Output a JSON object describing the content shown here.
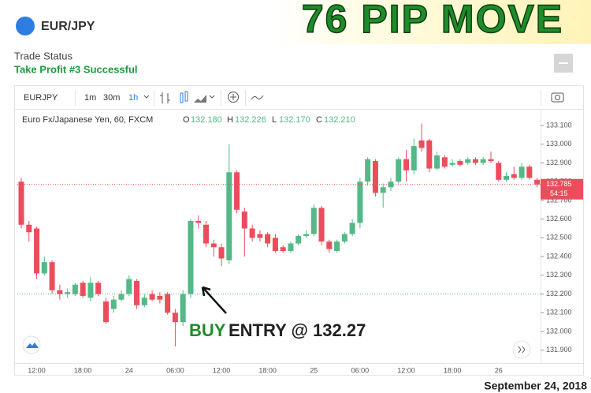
{
  "header": {
    "symbol": "EUR/JPY",
    "headline": "76 PIP MOVE"
  },
  "trade_status": {
    "label": "Trade Status",
    "status": "Take Profit #3 Successful"
  },
  "toolbar": {
    "symbol": "EURJPY",
    "intervals": [
      "1m",
      "30m",
      "1h"
    ]
  },
  "legend": {
    "name": "Euro Fx/Japanese Yen, 60, FXCM",
    "fields": [
      {
        "key": "O",
        "value": "132.180"
      },
      {
        "key": "H",
        "value": "132.226"
      },
      {
        "key": "L",
        "value": "132.170"
      },
      {
        "key": "C",
        "value": "132.210"
      }
    ]
  },
  "chart_data": {
    "type": "candlestick",
    "categories": [
      null,
      null,
      "12:00",
      null,
      null,
      null,
      null,
      null,
      "18:00",
      null,
      null,
      null,
      null,
      null,
      "24",
      null,
      null,
      null,
      null,
      null,
      "06:00",
      null,
      null,
      null,
      null,
      null,
      "12:00",
      null,
      null,
      null,
      null,
      null,
      "18:00",
      null,
      null,
      null,
      null,
      null,
      "25",
      null,
      null,
      null,
      null,
      null,
      "06:00",
      null,
      null,
      null,
      null,
      null,
      "12:00",
      null,
      null,
      null,
      null,
      null,
      "18:00",
      null,
      null,
      null,
      null,
      null,
      "26",
      null,
      null,
      null,
      null,
      null
    ],
    "open": [
      132.8,
      132.57,
      132.55,
      132.31,
      132.37,
      132.22,
      132.2,
      132.2,
      132.26,
      132.18,
      132.26,
      132.16,
      132.12,
      132.17,
      132.2,
      132.27,
      132.14,
      132.2,
      132.19,
      132.2,
      132.1,
      132.05,
      132.2,
      132.59,
      132.57,
      132.47,
      132.45,
      132.38,
      132.85,
      132.64,
      132.55,
      132.52,
      132.52,
      132.5,
      132.45,
      132.43,
      132.47,
      132.51,
      132.52,
      132.66,
      132.48,
      132.43,
      132.48,
      132.52,
      132.58,
      132.8,
      132.91,
      132.74,
      132.77,
      132.8,
      132.92,
      132.86,
      133.02,
      133.02,
      132.87,
      132.93,
      132.89,
      132.91,
      132.9,
      132.92,
      132.9,
      132.92,
      132.9,
      132.81,
      132.84,
      132.82,
      132.88,
      132.81
    ],
    "high": [
      132.82,
      132.59,
      132.56,
      132.4,
      132.38,
      132.25,
      132.23,
      132.26,
      132.27,
      132.29,
      132.27,
      132.18,
      132.19,
      132.22,
      132.3,
      132.28,
      132.2,
      132.22,
      132.21,
      132.21,
      132.12,
      132.22,
      132.6,
      132.62,
      132.59,
      132.49,
      132.47,
      133.0,
      132.86,
      132.66,
      132.57,
      132.54,
      132.53,
      132.52,
      132.46,
      132.48,
      132.52,
      132.54,
      132.68,
      132.67,
      132.49,
      132.49,
      132.53,
      132.6,
      132.82,
      132.93,
      132.92,
      132.79,
      132.82,
      132.93,
      132.97,
      133.03,
      133.11,
      133.03,
      132.96,
      132.94,
      132.92,
      132.92,
      132.93,
      132.93,
      132.93,
      132.96,
      132.91,
      132.85,
      132.88,
      132.9,
      132.89,
      132.82
    ],
    "low": [
      132.55,
      132.48,
      132.28,
      132.3,
      132.2,
      132.17,
      132.18,
      132.19,
      132.18,
      132.16,
      132.19,
      132.04,
      132.1,
      132.16,
      132.19,
      132.12,
      132.13,
      132.16,
      132.15,
      132.09,
      131.92,
      132.03,
      132.18,
      132.55,
      132.45,
      132.4,
      132.35,
      132.36,
      132.63,
      132.4,
      132.48,
      132.48,
      132.45,
      132.42,
      132.42,
      132.42,
      132.46,
      132.5,
      132.51,
      132.46,
      132.42,
      132.42,
      132.47,
      132.51,
      132.55,
      132.78,
      132.72,
      132.66,
      132.75,
      132.79,
      132.8,
      132.84,
      132.96,
      132.85,
      132.86,
      132.87,
      132.88,
      132.88,
      132.89,
      132.89,
      132.89,
      132.9,
      132.8,
      132.8,
      132.81,
      132.81,
      132.81,
      132.77
    ],
    "close": [
      132.57,
      132.53,
      132.31,
      132.37,
      132.22,
      132.2,
      132.21,
      132.25,
      132.19,
      132.26,
      132.2,
      132.05,
      132.17,
      132.2,
      132.28,
      132.14,
      132.18,
      132.17,
      132.17,
      132.1,
      132.05,
      132.2,
      132.59,
      132.58,
      132.47,
      132.45,
      132.39,
      132.85,
      132.65,
      132.55,
      132.5,
      132.5,
      132.47,
      132.43,
      132.43,
      132.47,
      132.51,
      132.52,
      132.66,
      132.48,
      132.44,
      132.48,
      132.52,
      132.58,
      132.8,
      132.92,
      132.74,
      132.77,
      132.8,
      132.92,
      132.86,
      132.99,
      132.98,
      132.87,
      132.94,
      132.88,
      132.9,
      132.89,
      132.92,
      132.9,
      132.92,
      132.91,
      132.81,
      132.83,
      132.82,
      132.88,
      132.82,
      132.785
    ],
    "up_color": "#53b987",
    "down_color": "#eb4d5c",
    "ylim": [
      131.84,
      133.18
    ],
    "yticks": [
      {
        "value": 131.9,
        "label": "131.900"
      },
      {
        "value": 132.0,
        "label": "132.000"
      },
      {
        "value": 132.1,
        "label": "132.100"
      },
      {
        "value": 132.2,
        "label": "132.200"
      },
      {
        "value": 132.3,
        "label": "132.300"
      },
      {
        "value": 132.4,
        "label": "132.400"
      },
      {
        "value": 132.5,
        "label": "132.500"
      },
      {
        "value": 132.6,
        "label": "132.600"
      },
      {
        "value": 132.7,
        "label": "132.700"
      },
      {
        "value": 132.8,
        "label": "132.800"
      },
      {
        "value": 132.9,
        "label": "132.900"
      },
      {
        "value": 133.0,
        "label": "133.000"
      },
      {
        "value": 133.1,
        "label": "133.100"
      }
    ],
    "last_price": 132.785,
    "countdown": "54:15",
    "entry_line": 132.2,
    "annotation": {
      "side": "BUY",
      "text": "ENTRY @ 132.27"
    }
  },
  "date": "September 24, 2018"
}
